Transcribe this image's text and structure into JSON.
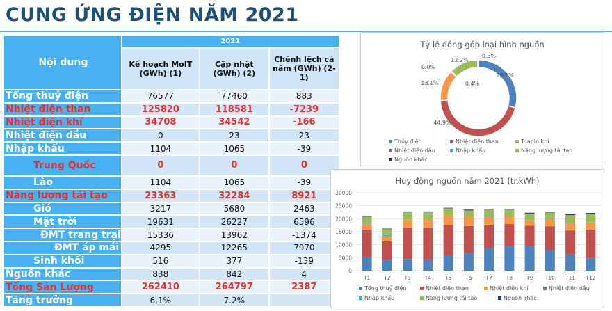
{
  "title": "CUNG ỨNG ĐIỆN NĂM 2021",
  "table": {
    "header_label": "Nội dung",
    "year": "2021",
    "columns": [
      "Kế hoạch MoIT (GWh) (1)",
      "Cập nhật (GWh) (2)",
      "Chênh lệch cả năm (GWh) (2-1)"
    ],
    "rows": [
      {
        "label": "Tổng thuỷ điện",
        "v": [
          "76577",
          "77460",
          "883"
        ],
        "red": false,
        "indent": 0
      },
      {
        "label": "Nhiệt điện than",
        "v": [
          "125820",
          "118581",
          "-7239"
        ],
        "red": true,
        "indent": 0
      },
      {
        "label": "Nhiệt điện khí",
        "v": [
          "34708",
          "34542",
          "-166"
        ],
        "red": true,
        "indent": 0
      },
      {
        "label": "Nhiệt điện dầu",
        "v": [
          "0",
          "23",
          "23"
        ],
        "red": false,
        "indent": 0
      },
      {
        "label": "Nhập khẩu",
        "v": [
          "1104",
          "1065",
          "-39"
        ],
        "red": false,
        "indent": 0
      },
      {
        "label": "Trung Quốc",
        "v": [
          "0",
          "0",
          "0"
        ],
        "red": true,
        "indent": 40
      },
      {
        "label": "Lào",
        "v": [
          "1104",
          "1065",
          "-39"
        ],
        "red": false,
        "indent": 40
      },
      {
        "label": "Năng lượng tái tạo",
        "v": [
          "23363",
          "32284",
          "8921"
        ],
        "red": true,
        "indent": 0
      },
      {
        "label": "Gió",
        "v": [
          "3217",
          "5680",
          "2463"
        ],
        "red": false,
        "indent": 40
      },
      {
        "label": "Mặt trời",
        "v": [
          "19631",
          "26227",
          "6596"
        ],
        "red": false,
        "indent": 40
      },
      {
        "label": "ĐMT trang trại",
        "v": [
          "15336",
          "13962",
          "-1374"
        ],
        "red": false,
        "indent": 50
      },
      {
        "label": "ĐMT áp mái",
        "v": [
          "4295",
          "12265",
          "7970"
        ],
        "red": false,
        "indent": 70
      },
      {
        "label": "Sinh khối",
        "v": [
          "516",
          "377",
          "-139"
        ],
        "red": false,
        "indent": 40
      },
      {
        "label": "Nguồn khác",
        "v": [
          "838",
          "842",
          "4"
        ],
        "red": false,
        "indent": 0
      },
      {
        "label": "Tổng Sản Lượng",
        "v": [
          "262410",
          "264797",
          "2387"
        ],
        "red": true,
        "indent": 0
      },
      {
        "label": "Tăng trưởng",
        "v": [
          "6.1%",
          "7.2%",
          ""
        ],
        "red": false,
        "indent": 0
      }
    ]
  },
  "chart_data": [
    {
      "type": "pie",
      "title": "Tỷ lệ đóng góp loại hình nguồn",
      "donut": true,
      "labels": [
        "Thủy điện",
        "Nhiệt điện than",
        "Tuabin khí",
        "Nhiệt điện dầu",
        "Nhập khẩu",
        "Năng lượng tái tạo",
        "Nguồn khác"
      ],
      "values": [
        29.1,
        44.9,
        13.1,
        0.0,
        0.4,
        12.2,
        0.3
      ],
      "data_labels": [
        "29.1%",
        "44.9%",
        "13.1%",
        "0.0%",
        "0.4%",
        "12.2%",
        "0.3%"
      ],
      "colors": [
        "#4f81bd",
        "#c0504d",
        "#f79646",
        "#8064a2",
        "#4bacc6",
        "#9bbb59",
        "#1f3864"
      ],
      "legend": "bottom"
    },
    {
      "type": "bar",
      "stacked": true,
      "title": "Huy động nguồn năm 2021 (tr.kWh)",
      "categories": [
        "T1",
        "T2",
        "T3",
        "T4",
        "T5",
        "T6",
        "T7",
        "T8",
        "T9",
        "T10",
        "T11",
        "T12"
      ],
      "ylim": [
        0,
        30000
      ],
      "yticks": [
        "0",
        "5000",
        "10000",
        "15000",
        "20000",
        "25000",
        "30000"
      ],
      "grid": true,
      "legend": "bottom",
      "series": [
        {
          "name": "Tổng thuỷ điện",
          "color": "#4f81bd",
          "values": [
            5200,
            4100,
            4500,
            4300,
            5900,
            6800,
            8600,
            9500,
            9400,
            7900,
            6200,
            4900
          ]
        },
        {
          "name": "Nhiệt điện than",
          "color": "#c0504d",
          "values": [
            10600,
            7200,
            12000,
            12200,
            11700,
            10400,
            9100,
            8500,
            7900,
            9200,
            9300,
            10900
          ]
        },
        {
          "name": "Nhiệt điện khí",
          "color": "#f79646",
          "values": [
            2400,
            2000,
            3000,
            3200,
            3700,
            3600,
            3200,
            2800,
            2100,
            2600,
            2900,
            2900
          ]
        },
        {
          "name": "Nhiệt điện dầu",
          "color": "#8064a2",
          "values": [
            0,
            0,
            0,
            0,
            0,
            0,
            0,
            0,
            0,
            0,
            0,
            0
          ]
        },
        {
          "name": "Nhập khẩu",
          "color": "#4bacc6",
          "values": [
            300,
            400,
            100,
            100,
            100,
            100,
            200,
            100,
            100,
            100,
            200,
            100
          ]
        },
        {
          "name": "Năng lượng tái tạo",
          "color": "#9bbb59",
          "values": [
            2300,
            2300,
            2900,
            2700,
            2600,
            2300,
            2400,
            2600,
            2500,
            2600,
            2800,
            3100
          ]
        },
        {
          "name": "Nguồn khác",
          "color": "#1f3864",
          "values": [
            200,
            200,
            300,
            300,
            200,
            300,
            200,
            200,
            300,
            200,
            300,
            300
          ]
        }
      ]
    }
  ]
}
